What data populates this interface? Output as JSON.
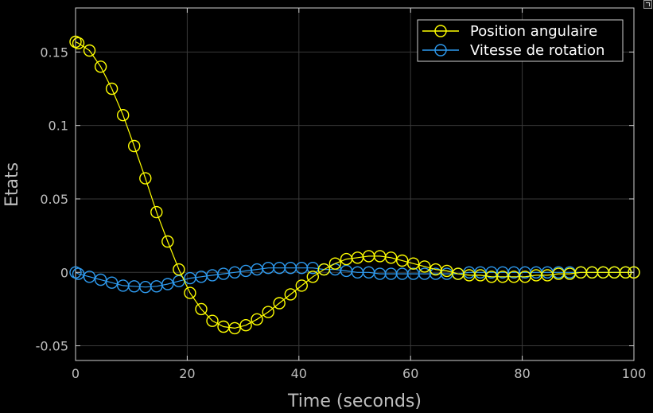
{
  "chart_data": {
    "type": "line",
    "title": "",
    "xlabel": "Time (seconds)",
    "ylabel": "Etats",
    "xlim": [
      0,
      100
    ],
    "ylim": [
      -0.06,
      0.18
    ],
    "xticks": [
      0,
      20,
      40,
      60,
      80,
      100
    ],
    "xtick_labels": [
      "0",
      "20",
      "40",
      "60",
      "80",
      "100"
    ],
    "yticks": [
      -0.05,
      0,
      0.05,
      0.1,
      0.15
    ],
    "ytick_labels": [
      "-0.05",
      "0",
      "0.05",
      "0.1",
      "0.15"
    ],
    "grid": true,
    "legend_position": "top-right",
    "background": "#000000",
    "grid_color": "#3a3a3a",
    "series": [
      {
        "name": "Position angulaire",
        "color": "#ffff00",
        "marker": "circle",
        "x": [
          0,
          0.5,
          2.5,
          4.5,
          6.5,
          8.5,
          10.5,
          12.5,
          14.5,
          16.5,
          18.5,
          20.5,
          22.5,
          24.5,
          26.5,
          28.5,
          30.5,
          32.5,
          34.5,
          36.5,
          38.5,
          40.5,
          42.5,
          44.5,
          46.5,
          48.5,
          50.5,
          52.5,
          54.5,
          56.5,
          58.5,
          60.5,
          62.5,
          64.5,
          66.5,
          68.5,
          70.5,
          72.5,
          74.5,
          76.5,
          78.5,
          80.5,
          82.5,
          84.5,
          86.5,
          88.5,
          90.5,
          92.5,
          94.5,
          96.5,
          98.5,
          100
        ],
        "y": [
          0.157,
          0.156,
          0.151,
          0.14,
          0.125,
          0.107,
          0.086,
          0.064,
          0.041,
          0.021,
          0.002,
          -0.014,
          -0.025,
          -0.033,
          -0.037,
          -0.038,
          -0.036,
          -0.032,
          -0.027,
          -0.021,
          -0.015,
          -0.009,
          -0.003,
          0.002,
          0.006,
          0.009,
          0.01,
          0.011,
          0.011,
          0.01,
          0.008,
          0.006,
          0.004,
          0.002,
          0.001,
          -0.001,
          -0.002,
          -0.002,
          -0.003,
          -0.003,
          -0.003,
          -0.003,
          -0.002,
          -0.002,
          -0.001,
          -0.001,
          0.0,
          0.0,
          0.0,
          0.0,
          0.0,
          0.0
        ]
      },
      {
        "name": "Vitesse de rotation",
        "color": "#2e9bf0",
        "marker": "circle",
        "x": [
          0,
          0.5,
          2.5,
          4.5,
          6.5,
          8.5,
          10.5,
          12.5,
          14.5,
          16.5,
          18.5,
          20.5,
          22.5,
          24.5,
          26.5,
          28.5,
          30.5,
          32.5,
          34.5,
          36.5,
          38.5,
          40.5,
          42.5,
          44.5,
          46.5,
          48.5,
          50.5,
          52.5,
          54.5,
          56.5,
          58.5,
          60.5,
          62.5,
          64.5,
          66.5,
          68.5,
          70.5,
          72.5,
          74.5,
          76.5,
          78.5,
          80.5,
          82.5,
          84.5,
          86.5,
          88.5,
          90.5,
          92.5,
          94.5,
          96.5,
          98.5,
          100
        ],
        "y": [
          0.0,
          -0.001,
          -0.003,
          -0.005,
          -0.007,
          -0.009,
          -0.0095,
          -0.01,
          -0.0095,
          -0.008,
          -0.006,
          -0.004,
          -0.003,
          -0.002,
          -0.001,
          0.0,
          0.001,
          0.002,
          0.003,
          0.003,
          0.003,
          0.003,
          0.003,
          0.002,
          0.002,
          0.001,
          0.0,
          0.0,
          -0.001,
          -0.001,
          -0.001,
          -0.001,
          -0.001,
          -0.001,
          -0.001,
          -0.001,
          0.0,
          0.0,
          0.0,
          0.0,
          0.0,
          0.0,
          0.0,
          0.0,
          0.0,
          0.0,
          0.0,
          0.0,
          0.0,
          0.0,
          0.0,
          0.0
        ]
      }
    ]
  }
}
